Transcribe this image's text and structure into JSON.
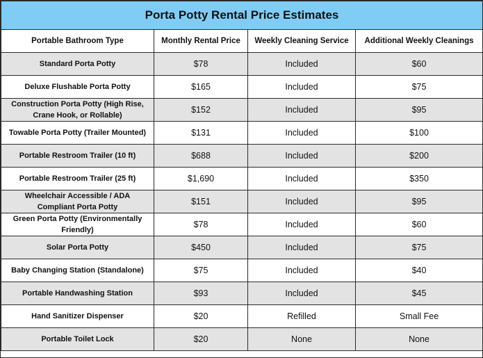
{
  "title": "Porta Potty Rental Price Estimates",
  "columns": [
    "Portable Bathroom Type",
    "Monthly Rental Price",
    "Weekly Cleaning Service",
    "Additional Weekly Cleanings"
  ],
  "rows": [
    [
      "Standard Porta Potty",
      "$78",
      "Included",
      "$60"
    ],
    [
      "Deluxe Flushable Porta Potty",
      "$165",
      "Included",
      "$75"
    ],
    [
      "Construction Porta Potty (High Rise, Crane Hook, or Rollable)",
      "$152",
      "Included",
      "$95"
    ],
    [
      "Towable Porta Potty (Trailer Mounted)",
      "$131",
      "Included",
      "$100"
    ],
    [
      "Portable Restroom Trailer (10 ft)",
      "$688",
      "Included",
      "$200"
    ],
    [
      "Portable Restroom Trailer (25 ft)",
      "$1,690",
      "Included",
      "$350"
    ],
    [
      "Wheelchair Accessible / ADA Compliant Porta Potty",
      "$151",
      "Included",
      "$95"
    ],
    [
      "Green Porta Potty (Environmentally Friendly)",
      "$78",
      "Included",
      "$60"
    ],
    [
      "Solar Porta Potty",
      "$450",
      "Included",
      "$75"
    ],
    [
      "Baby Changing Station (Standalone)",
      "$75",
      "Included",
      "$40"
    ],
    [
      "Portable Handwashing Station",
      "$93",
      "Included",
      "$45"
    ],
    [
      "Hand Sanitizer Dispenser",
      "$20",
      "Refilled",
      "Small Fee"
    ],
    [
      "Portable Toilet Lock",
      "$20",
      "None",
      "None"
    ]
  ],
  "colors": {
    "title_bg": "#7fcdf5",
    "stripe_bg": "#e3e3e3",
    "border": "#2a2a2a"
  }
}
